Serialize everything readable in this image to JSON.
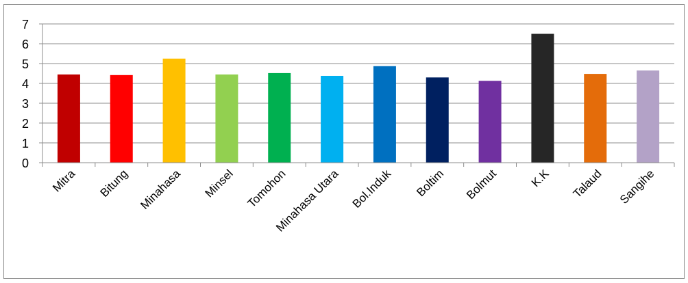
{
  "chart_data": {
    "type": "bar",
    "categories": [
      "Mitra",
      "Bitung",
      "Minahasa",
      "Minsel",
      "Tomohon",
      "Minahasa Utara",
      "Bol.Induk",
      "Boltim",
      "Bolmut",
      "K.K",
      "Talaud",
      "Sangihe"
    ],
    "values": [
      4.45,
      4.42,
      5.25,
      4.45,
      4.52,
      4.38,
      4.87,
      4.3,
      4.13,
      6.5,
      4.48,
      4.65
    ],
    "colors": [
      "#c00000",
      "#ff0000",
      "#ffc000",
      "#92d050",
      "#00b050",
      "#00b0f0",
      "#0070c0",
      "#002060",
      "#7030a0",
      "#262626",
      "#e46c0a",
      "#b3a2c7"
    ],
    "ylim": [
      0,
      7
    ],
    "yticks": [
      "0",
      "1",
      "2",
      "3",
      "4",
      "5",
      "6",
      "7"
    ],
    "grid": true,
    "legend": "none",
    "title": "",
    "xlabel": "",
    "ylabel": ""
  }
}
